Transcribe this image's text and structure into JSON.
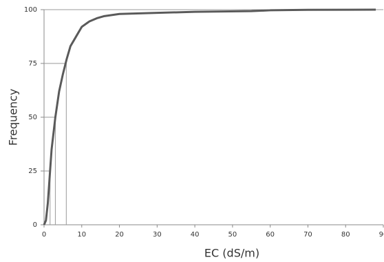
{
  "chart_data": {
    "type": "line",
    "x_label": "EC (dS/m)",
    "y_label": "Frequency",
    "x": [
      0,
      0.5,
      1,
      1.6,
      2,
      3,
      4,
      5,
      6,
      7,
      8,
      9,
      10,
      12,
      14,
      16,
      20,
      30,
      40,
      55,
      60,
      70,
      88
    ],
    "series": [
      {
        "color": "#5a5a5a",
        "values": [
          0,
          2,
          10,
          25,
          35,
          50,
          62,
          70,
          77,
          83,
          86,
          89,
          92,
          94.5,
          96,
          97,
          98,
          98.5,
          99,
          99.3,
          99.7,
          99.9,
          100
        ]
      }
    ],
    "reference_points": [
      {
        "x": 1.6,
        "y": 25
      },
      {
        "x": 3,
        "y": 50
      },
      {
        "x": 5.9,
        "y": 75
      }
    ],
    "xlim": [
      0,
      90
    ],
    "xticks": [
      0,
      10,
      20,
      30,
      40,
      50,
      60,
      70,
      80,
      90
    ],
    "ylim": [
      0,
      100
    ],
    "yticks": [
      0,
      25,
      50,
      75,
      100
    ]
  }
}
